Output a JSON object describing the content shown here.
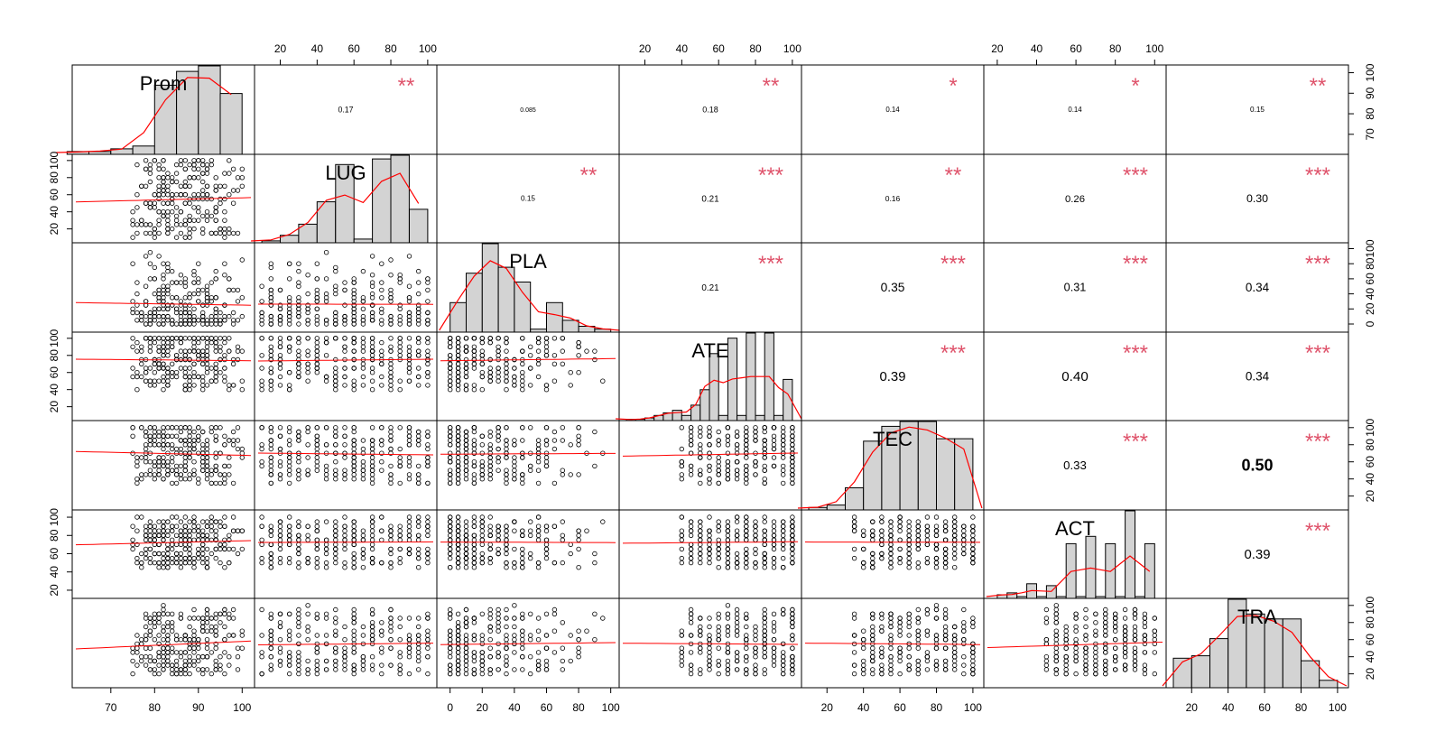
{
  "chart_data": {
    "type": "scatter",
    "variables": [
      "Prom",
      "LUG",
      "PLA",
      "ATE",
      "TEC",
      "ACT",
      "TRA"
    ],
    "ranges": {
      "Prom": [
        62,
        102
      ],
      "LUG": [
        8,
        103
      ],
      "PLA": [
        -6,
        103
      ],
      "ATE": [
        8,
        103
      ],
      "TEC": [
        8,
        104
      ],
      "ACT": [
        15,
        104
      ],
      "TRA": [
        8,
        104
      ]
    },
    "ticks": {
      "Prom": [
        "70",
        "80",
        "90",
        "100"
      ],
      "LUG": [
        "20",
        "40",
        "60",
        "80",
        "100"
      ],
      "PLA": [
        "0",
        "20",
        "40",
        "60",
        "80",
        "100"
      ],
      "ATE": [
        "20",
        "40",
        "60",
        "80",
        "100"
      ],
      "TEC": [
        "20",
        "40",
        "60",
        "80",
        "100"
      ],
      "ACT": [
        "20",
        "40",
        "60",
        "80",
        "100"
      ],
      "TRA": [
        "20",
        "40",
        "60",
        "80",
        "100"
      ]
    },
    "correlations": [
      {
        "row": "Prom",
        "col": "LUG",
        "r": "0.17",
        "stars": "**"
      },
      {
        "row": "Prom",
        "col": "PLA",
        "r": "0.085",
        "stars": ""
      },
      {
        "row": "Prom",
        "col": "ATE",
        "r": "0.18",
        "stars": "**"
      },
      {
        "row": "Prom",
        "col": "TEC",
        "r": "0.14",
        "stars": "*"
      },
      {
        "row": "Prom",
        "col": "ACT",
        "r": "0.14",
        "stars": "*"
      },
      {
        "row": "Prom",
        "col": "TRA",
        "r": "0.15",
        "stars": "**"
      },
      {
        "row": "LUG",
        "col": "PLA",
        "r": "0.15",
        "stars": "**"
      },
      {
        "row": "LUG",
        "col": "ATE",
        "r": "0.21",
        "stars": "***"
      },
      {
        "row": "LUG",
        "col": "TEC",
        "r": "0.16",
        "stars": "**"
      },
      {
        "row": "LUG",
        "col": "ACT",
        "r": "0.26",
        "stars": "***"
      },
      {
        "row": "LUG",
        "col": "TRA",
        "r": "0.30",
        "stars": "***"
      },
      {
        "row": "PLA",
        "col": "ATE",
        "r": "0.21",
        "stars": "***"
      },
      {
        "row": "PLA",
        "col": "TEC",
        "r": "0.35",
        "stars": "***"
      },
      {
        "row": "PLA",
        "col": "ACT",
        "r": "0.31",
        "stars": "***"
      },
      {
        "row": "PLA",
        "col": "TRA",
        "r": "0.34",
        "stars": "***"
      },
      {
        "row": "ATE",
        "col": "TEC",
        "r": "0.39",
        "stars": "***"
      },
      {
        "row": "ATE",
        "col": "ACT",
        "r": "0.40",
        "stars": "***"
      },
      {
        "row": "ATE",
        "col": "TRA",
        "r": "0.34",
        "stars": "***"
      },
      {
        "row": "TEC",
        "col": "ACT",
        "r": "0.33",
        "stars": "***"
      },
      {
        "row": "TEC",
        "col": "TRA",
        "r": "0.50",
        "stars": "***"
      },
      {
        "row": "ACT",
        "col": "TRA",
        "r": "0.39",
        "stars": "***"
      }
    ],
    "histograms": {
      "Prom": {
        "breaks": [
          60,
          65,
          70,
          75,
          80,
          85,
          90,
          95,
          100
        ],
        "counts": [
          1,
          1,
          2,
          3,
          25,
          30,
          32,
          22,
          15
        ]
      },
      "LUG": {
        "breaks": [
          10,
          20,
          30,
          40,
          50,
          60,
          70,
          80,
          90,
          100
        ],
        "counts": [
          1,
          4,
          10,
          22,
          42,
          2,
          45,
          47,
          18,
          6
        ]
      },
      "PLA": {
        "breaks": [
          0,
          10,
          20,
          30,
          40,
          50,
          60,
          70,
          80,
          90,
          100
        ],
        "counts": [
          10,
          20,
          30,
          22,
          17,
          1,
          10,
          4,
          2,
          1
        ]
      },
      "ATE": {
        "breaks": [
          10,
          15,
          20,
          25,
          30,
          35,
          40,
          45,
          50,
          55,
          60,
          65,
          70,
          75,
          80,
          85,
          90,
          95,
          100
        ],
        "counts": [
          0.5,
          0.5,
          1,
          2,
          3,
          4,
          2,
          6,
          12,
          26,
          2,
          32,
          2,
          34,
          2,
          34,
          2,
          16
        ]
      },
      "TEC": {
        "breaks": [
          10,
          20,
          30,
          40,
          50,
          60,
          70,
          80,
          90,
          100
        ],
        "counts": [
          1,
          2,
          9,
          28,
          34,
          36,
          36,
          29,
          29
        ]
      },
      "ACT": {
        "breaks": [
          20,
          25,
          30,
          35,
          40,
          45,
          50,
          55,
          60,
          65,
          70,
          75,
          80,
          85,
          90,
          95,
          100
        ],
        "counts": [
          2,
          3,
          1,
          8,
          1,
          7,
          1,
          30,
          1,
          34,
          1,
          30,
          1,
          48,
          1,
          30,
          1
        ]
      },
      "TRA": {
        "breaks": [
          10,
          20,
          30,
          40,
          50,
          60,
          70,
          80,
          90,
          100
        ],
        "counts": [
          12,
          13,
          20,
          36,
          30,
          28,
          28,
          11,
          3
        ]
      }
    },
    "series_color": "#FF0000",
    "star_color": "#DF536B",
    "hist_fill": "#D3D3D3",
    "grid": false
  }
}
